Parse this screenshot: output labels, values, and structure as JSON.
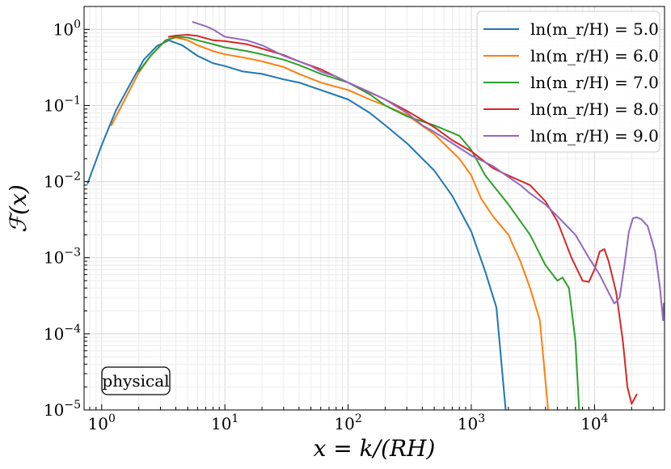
{
  "chart_data": {
    "type": "line",
    "xscale": "log",
    "yscale": "log",
    "xlabel": "x = k/(RH)",
    "ylabel": "ℱ(x)",
    "xlim": [
      0.72,
      37000
    ],
    "ylim": [
      1e-05,
      2.0
    ],
    "grid": true,
    "legend_position": "top-right",
    "annotation": "physical",
    "x_ticks": [
      {
        "value": 1,
        "base": "10",
        "exp": "0"
      },
      {
        "value": 10,
        "base": "10",
        "exp": "1"
      },
      {
        "value": 100,
        "base": "10",
        "exp": "2"
      },
      {
        "value": 1000,
        "base": "10",
        "exp": "3"
      },
      {
        "value": 10000,
        "base": "10",
        "exp": "4"
      }
    ],
    "y_ticks": [
      {
        "value": 1e-05,
        "base": "10",
        "exp": "−5"
      },
      {
        "value": 0.0001,
        "base": "10",
        "exp": "−4"
      },
      {
        "value": 0.001,
        "base": "10",
        "exp": "−3"
      },
      {
        "value": 0.01,
        "base": "10",
        "exp": "−2"
      },
      {
        "value": 0.1,
        "base": "10",
        "exp": "−1"
      },
      {
        "value": 1,
        "base": "10",
        "exp": "0"
      }
    ],
    "series": [
      {
        "name": "ln(m_r/H) = 5.0",
        "color": "#1f77b4",
        "points": [
          [
            0.77,
            0.0095
          ],
          [
            1.0,
            0.03
          ],
          [
            1.3,
            0.085
          ],
          [
            1.7,
            0.19
          ],
          [
            2.2,
            0.4
          ],
          [
            2.8,
            0.6
          ],
          [
            3.5,
            0.72
          ],
          [
            4.5,
            0.62
          ],
          [
            6,
            0.45
          ],
          [
            8,
            0.36
          ],
          [
            10,
            0.33
          ],
          [
            14,
            0.28
          ],
          [
            20,
            0.26
          ],
          [
            30,
            0.22
          ],
          [
            40,
            0.2
          ],
          [
            60,
            0.16
          ],
          [
            100,
            0.12
          ],
          [
            150,
            0.08
          ],
          [
            200,
            0.055
          ],
          [
            300,
            0.032
          ],
          [
            500,
            0.014
          ],
          [
            700,
            0.0065
          ],
          [
            1000,
            0.0022
          ],
          [
            1300,
            0.00065
          ],
          [
            1600,
            0.00022
          ],
          [
            1900,
            1e-05
          ]
        ]
      },
      {
        "name": "ln(m_r/H) = 6.0",
        "color": "#ff7f0e",
        "points": [
          [
            1.2,
            0.055
          ],
          [
            1.5,
            0.11
          ],
          [
            2,
            0.27
          ],
          [
            2.5,
            0.45
          ],
          [
            3.3,
            0.72
          ],
          [
            4,
            0.78
          ],
          [
            5,
            0.72
          ],
          [
            6,
            0.62
          ],
          [
            8,
            0.52
          ],
          [
            10,
            0.47
          ],
          [
            15,
            0.42
          ],
          [
            20,
            0.38
          ],
          [
            30,
            0.32
          ],
          [
            40,
            0.26
          ],
          [
            60,
            0.2
          ],
          [
            100,
            0.16
          ],
          [
            150,
            0.12
          ],
          [
            200,
            0.1
          ],
          [
            300,
            0.075
          ],
          [
            500,
            0.042
          ],
          [
            800,
            0.02
          ],
          [
            1000,
            0.012
          ],
          [
            1200,
            0.006
          ],
          [
            1500,
            0.0035
          ],
          [
            2000,
            0.002
          ],
          [
            2500,
            0.0009
          ],
          [
            3000,
            0.0004
          ],
          [
            3600,
            0.00015
          ],
          [
            4200,
            1e-05
          ]
        ]
      },
      {
        "name": "ln(m_r/H) = 7.0",
        "color": "#2ca02c",
        "points": [
          [
            2,
            0.28
          ],
          [
            2.5,
            0.45
          ],
          [
            3.3,
            0.72
          ],
          [
            4,
            0.8
          ],
          [
            5,
            0.78
          ],
          [
            6,
            0.72
          ],
          [
            8,
            0.64
          ],
          [
            10,
            0.58
          ],
          [
            15,
            0.52
          ],
          [
            20,
            0.47
          ],
          [
            30,
            0.4
          ],
          [
            40,
            0.34
          ],
          [
            60,
            0.26
          ],
          [
            100,
            0.2
          ],
          [
            150,
            0.14
          ],
          [
            200,
            0.1
          ],
          [
            300,
            0.072
          ],
          [
            500,
            0.055
          ],
          [
            800,
            0.04
          ],
          [
            1000,
            0.026
          ],
          [
            1300,
            0.012
          ],
          [
            2000,
            0.005
          ],
          [
            3000,
            0.002
          ],
          [
            4000,
            0.0008
          ],
          [
            5000,
            0.0005
          ],
          [
            5500,
            0.00055
          ],
          [
            6200,
            0.0004
          ],
          [
            7000,
            8e-05
          ],
          [
            7500,
            1e-05
          ]
        ]
      },
      {
        "name": "ln(m_r/H) = 8.0",
        "color": "#d62728",
        "points": [
          [
            3.5,
            0.8
          ],
          [
            4,
            0.83
          ],
          [
            5,
            0.85
          ],
          [
            6,
            0.82
          ],
          [
            8,
            0.72
          ],
          [
            10,
            0.7
          ],
          [
            15,
            0.64
          ],
          [
            20,
            0.56
          ],
          [
            30,
            0.46
          ],
          [
            40,
            0.38
          ],
          [
            60,
            0.3
          ],
          [
            100,
            0.2
          ],
          [
            200,
            0.12
          ],
          [
            300,
            0.085
          ],
          [
            500,
            0.052
          ],
          [
            700,
            0.035
          ],
          [
            1000,
            0.025
          ],
          [
            1500,
            0.015
          ],
          [
            2000,
            0.012
          ],
          [
            3000,
            0.009
          ],
          [
            4000,
            0.0055
          ],
          [
            5000,
            0.003
          ],
          [
            6500,
            0.001
          ],
          [
            8000,
            0.0005
          ],
          [
            9000,
            0.00048
          ],
          [
            10000,
            0.0007
          ],
          [
            11000,
            0.0012
          ],
          [
            12000,
            0.0013
          ],
          [
            13000,
            0.0009
          ],
          [
            15000,
            0.00035
          ],
          [
            17000,
            8e-05
          ],
          [
            18500,
            2e-05
          ],
          [
            20000,
            1.2e-05
          ],
          [
            22000,
            1.6e-05
          ]
        ]
      },
      {
        "name": "ln(m_r/H) = 9.0",
        "color": "#9467bd",
        "points": [
          [
            5.5,
            1.25
          ],
          [
            7,
            1.1
          ],
          [
            8,
            1.0
          ],
          [
            10,
            0.8
          ],
          [
            15,
            0.72
          ],
          [
            20,
            0.62
          ],
          [
            30,
            0.45
          ],
          [
            40,
            0.38
          ],
          [
            50,
            0.33
          ],
          [
            60,
            0.28
          ],
          [
            80,
            0.24
          ],
          [
            100,
            0.2
          ],
          [
            150,
            0.15
          ],
          [
            200,
            0.12
          ],
          [
            300,
            0.08
          ],
          [
            400,
            0.055
          ],
          [
            500,
            0.045
          ],
          [
            700,
            0.032
          ],
          [
            1000,
            0.022
          ],
          [
            1500,
            0.016
          ],
          [
            2000,
            0.0115
          ],
          [
            2500,
            0.009
          ],
          [
            3000,
            0.007
          ],
          [
            4000,
            0.005
          ],
          [
            5000,
            0.0035
          ],
          [
            7000,
            0.002
          ],
          [
            9000,
            0.001
          ],
          [
            11000,
            0.0006
          ],
          [
            13000,
            0.00035
          ],
          [
            14500,
            0.00025
          ],
          [
            16000,
            0.0003
          ],
          [
            17500,
            0.0008
          ],
          [
            19000,
            0.0022
          ],
          [
            20500,
            0.0033
          ],
          [
            22000,
            0.0034
          ],
          [
            24000,
            0.0032
          ],
          [
            27000,
            0.0026
          ],
          [
            31000,
            0.0012
          ],
          [
            34000,
            0.0004
          ],
          [
            36000,
            0.00015
          ],
          [
            36500,
            0.00025
          ]
        ]
      }
    ]
  }
}
